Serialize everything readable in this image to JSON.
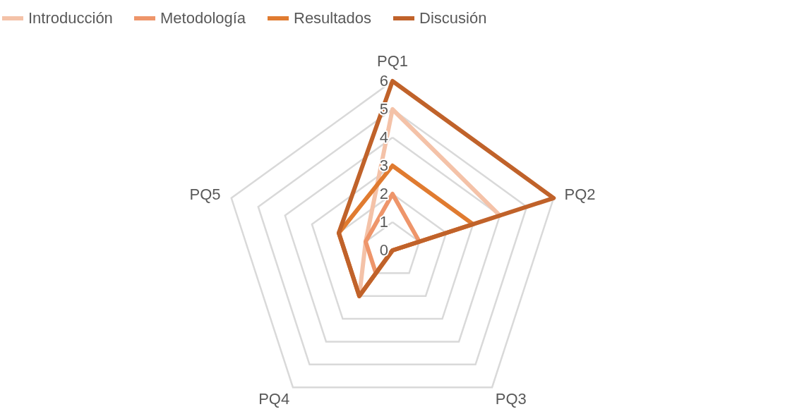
{
  "chart_data": {
    "type": "radar",
    "categories": [
      "PQ1",
      "PQ2",
      "PQ3",
      "PQ4",
      "PQ5"
    ],
    "series": [
      {
        "name": "Introducción",
        "color": "#f4c2a8",
        "values": [
          5,
          4,
          0,
          2,
          1
        ]
      },
      {
        "name": "Metodología",
        "color": "#ee956a",
        "values": [
          2,
          1,
          0,
          1,
          1
        ]
      },
      {
        "name": "Resultados",
        "color": "#e07b30",
        "values": [
          3,
          3,
          0,
          2,
          2
        ]
      },
      {
        "name": "Discusión",
        "color": "#c0622a",
        "values": [
          6,
          6,
          0,
          2,
          2
        ]
      }
    ],
    "ylim": [
      0,
      6
    ],
    "yticks": [
      0,
      1,
      2,
      3,
      4,
      5,
      6
    ],
    "grid": true,
    "legend": "top",
    "line_style": "solid",
    "marker": "none"
  }
}
